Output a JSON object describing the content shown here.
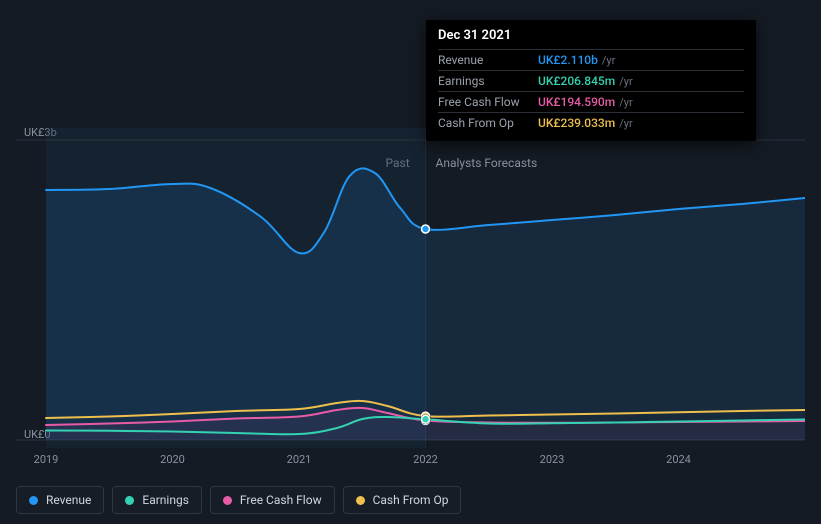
{
  "chart": {
    "type": "line-area",
    "background_color": "#151b24",
    "plot_bg_past": "#18334b",
    "plot_bg_past_opacity": 0.35,
    "grid_color": "#2a3340",
    "text_color": "#8a929e",
    "ylim": [
      0,
      3000
    ],
    "y_unit_prefix": "UK£",
    "y_top_label": "UK£3b",
    "y_bottom_label": "UK£0",
    "period_labels": {
      "past": "Past",
      "forecast": "Analysts Forecasts"
    },
    "x_start_year": 2019,
    "x_end_year": 2025,
    "x_divider_year": 2022,
    "x_ticks": [
      2019,
      2020,
      2021,
      2022,
      2023,
      2024
    ],
    "marker_outline": "#ffffff",
    "marker_radius": 4,
    "series": [
      {
        "key": "revenue",
        "label": "Revenue",
        "color": "#2196f3",
        "fill": true,
        "fill_opacity": 0.12,
        "points": [
          [
            2019.0,
            2500
          ],
          [
            2019.5,
            2510
          ],
          [
            2020.0,
            2560
          ],
          [
            2020.3,
            2520
          ],
          [
            2020.7,
            2230
          ],
          [
            2021.0,
            1870
          ],
          [
            2021.2,
            2080
          ],
          [
            2021.4,
            2640
          ],
          [
            2021.6,
            2670
          ],
          [
            2021.8,
            2320
          ],
          [
            2022.0,
            2110
          ],
          [
            2022.5,
            2150
          ],
          [
            2023.0,
            2200
          ],
          [
            2023.5,
            2250
          ],
          [
            2024.0,
            2310
          ],
          [
            2024.5,
            2360
          ],
          [
            2025.0,
            2420
          ]
        ]
      },
      {
        "key": "cash_from_op",
        "label": "Cash From Op",
        "color": "#eebf4d",
        "fill": false,
        "points": [
          [
            2019.0,
            220
          ],
          [
            2019.5,
            235
          ],
          [
            2020.0,
            260
          ],
          [
            2020.5,
            290
          ],
          [
            2021.0,
            310
          ],
          [
            2021.3,
            370
          ],
          [
            2021.5,
            390
          ],
          [
            2021.7,
            340
          ],
          [
            2022.0,
            239
          ],
          [
            2022.5,
            245
          ],
          [
            2023.0,
            255
          ],
          [
            2023.5,
            265
          ],
          [
            2024.0,
            278
          ],
          [
            2024.5,
            290
          ],
          [
            2025.0,
            300
          ]
        ]
      },
      {
        "key": "free_cash_flow",
        "label": "Free Cash Flow",
        "color": "#e85ca6",
        "fill": true,
        "fill_opacity": 0.07,
        "points": [
          [
            2019.0,
            150
          ],
          [
            2019.5,
            165
          ],
          [
            2020.0,
            185
          ],
          [
            2020.5,
            215
          ],
          [
            2021.0,
            235
          ],
          [
            2021.3,
            300
          ],
          [
            2021.5,
            320
          ],
          [
            2021.7,
            270
          ],
          [
            2022.0,
            195
          ],
          [
            2022.5,
            175
          ],
          [
            2023.0,
            172
          ],
          [
            2023.5,
            175
          ],
          [
            2024.0,
            180
          ],
          [
            2024.5,
            185
          ],
          [
            2025.0,
            190
          ]
        ]
      },
      {
        "key": "earnings",
        "label": "Earnings",
        "color": "#34d1b2",
        "fill": false,
        "points": [
          [
            2019.0,
            95
          ],
          [
            2019.5,
            92
          ],
          [
            2020.0,
            85
          ],
          [
            2020.5,
            70
          ],
          [
            2021.0,
            60
          ],
          [
            2021.3,
            120
          ],
          [
            2021.5,
            210
          ],
          [
            2021.7,
            230
          ],
          [
            2022.0,
            207
          ],
          [
            2022.5,
            165
          ],
          [
            2023.0,
            168
          ],
          [
            2023.5,
            175
          ],
          [
            2024.0,
            185
          ],
          [
            2024.5,
            195
          ],
          [
            2025.0,
            205
          ]
        ]
      }
    ],
    "highlight_x": 2022.0
  },
  "tooltip": {
    "title": "Dec 31 2021",
    "unit": "/yr",
    "rows": [
      {
        "label": "Revenue",
        "value": "UK£2.110b",
        "color": "#2196f3"
      },
      {
        "label": "Earnings",
        "value": "UK£206.845m",
        "color": "#34d1b2"
      },
      {
        "label": "Free Cash Flow",
        "value": "UK£194.590m",
        "color": "#e85ca6"
      },
      {
        "label": "Cash From Op",
        "value": "UK£239.033m",
        "color": "#eebf4d"
      }
    ]
  },
  "legend": [
    {
      "label": "Revenue",
      "color": "#2196f3"
    },
    {
      "label": "Earnings",
      "color": "#34d1b2"
    },
    {
      "label": "Free Cash Flow",
      "color": "#e85ca6"
    },
    {
      "label": "Cash From Op",
      "color": "#eebf4d"
    }
  ]
}
